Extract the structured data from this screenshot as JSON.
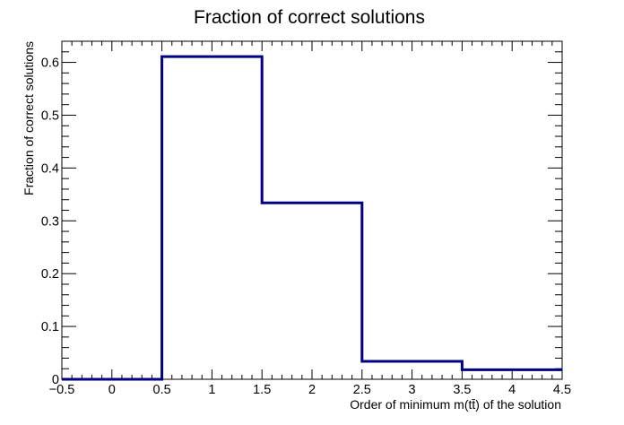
{
  "chart_data": {
    "type": "histogram",
    "title": "Fraction of correct solutions",
    "xlabel": "Order of minimum m(tt̄) of the solution",
    "ylabel": "Fraction of correct solutions",
    "xlim": [
      -0.5,
      4.5
    ],
    "ylim": [
      0,
      0.64
    ],
    "x_ticks": [
      "−0.5",
      "0",
      "0.5",
      "1",
      "1.5",
      "2",
      "2.5",
      "3",
      "3.5",
      "4",
      "4.5"
    ],
    "y_ticks": [
      "0",
      "0.1",
      "0.2",
      "0.3",
      "0.4",
      "0.5",
      "0.6"
    ],
    "bin_edges": [
      -0.5,
      0.5,
      1.5,
      2.5,
      3.5,
      4.5
    ],
    "values": [
      0.0,
      0.611,
      0.334,
      0.034,
      0.018
    ],
    "grid": false,
    "line_color": "#000080"
  }
}
